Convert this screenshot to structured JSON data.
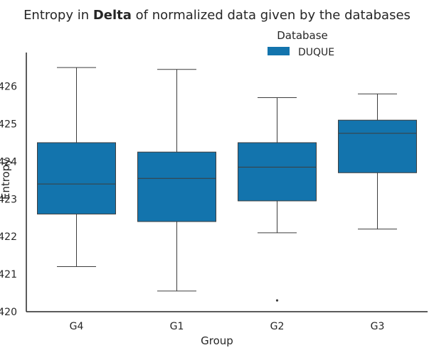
{
  "chart_data": {
    "type": "box",
    "title_prefix": "Entropy in ",
    "title_bold": "Delta",
    "title_suffix": " of normalized data given by the databases",
    "xlabel": "Group",
    "ylabel": "Entropy",
    "categories": [
      "G4",
      "G1",
      "G2",
      "G3"
    ],
    "y_ticks": [
      420,
      421,
      422,
      423,
      424,
      425,
      426
    ],
    "y_tick_labels": [
      "420",
      "421",
      "422",
      "423",
      "424",
      "425",
      "426"
    ],
    "ylim": [
      420,
      426.9
    ],
    "legend": {
      "title": "Database",
      "placement": "top-center",
      "entries": [
        {
          "name": "DUQUE",
          "color": "#1374ad"
        }
      ]
    },
    "series": [
      {
        "name": "DUQUE",
        "color": "#1374ad",
        "boxes": [
          {
            "category": "G4",
            "whisker_low": 421.2,
            "q1": 422.6,
            "median": 423.4,
            "q3": 424.5,
            "whisker_high": 426.5,
            "outliers": []
          },
          {
            "category": "G1",
            "whisker_low": 420.55,
            "q1": 422.4,
            "median": 423.55,
            "q3": 424.25,
            "whisker_high": 426.45,
            "outliers": []
          },
          {
            "category": "G2",
            "whisker_low": 422.1,
            "q1": 422.95,
            "median": 423.85,
            "q3": 424.5,
            "whisker_high": 425.7,
            "outliers": [
              420.3
            ]
          },
          {
            "category": "G3",
            "whisker_low": 422.2,
            "q1": 423.7,
            "median": 424.75,
            "q3": 425.1,
            "whisker_high": 425.8,
            "outliers": []
          }
        ]
      }
    ]
  }
}
